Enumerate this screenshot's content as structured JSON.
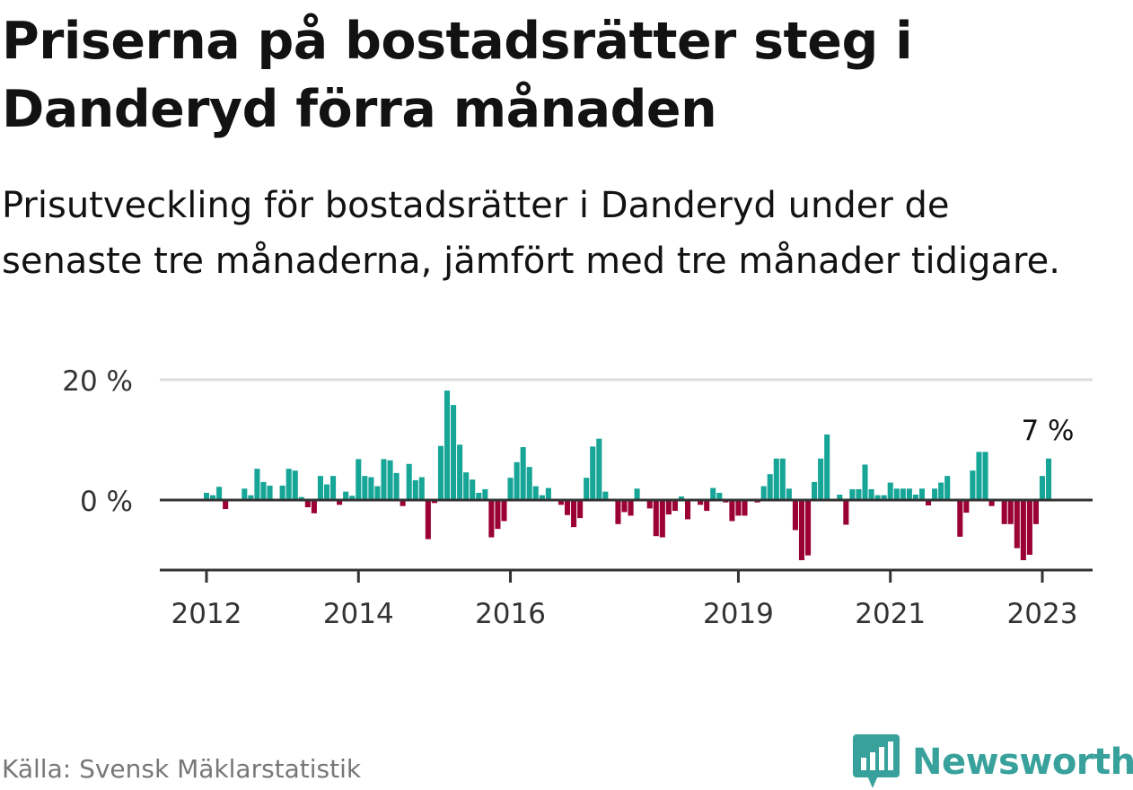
{
  "title": "Priserna på bostadsrätter steg i Danderyd förra månaden",
  "subtitle": "Prisutveckling för bostadsrätter i Danderyd under de senaste tre månaderna, jämfört med tre månader tidigare.",
  "source": "Källa: Svensk Mäklarstatistik",
  "brand": {
    "name": "Newsworthy",
    "logo_icon": "bar-chart-speech-bubble-icon",
    "color": "#38a19b"
  },
  "colors": {
    "positive": "#16a597",
    "negative": "#9b0034"
  },
  "chart_data": {
    "type": "bar",
    "ylabel": "",
    "xlabel": "",
    "ylim": [
      -11,
      20
    ],
    "yticks": [
      {
        "value": 0,
        "label": "0 %"
      },
      {
        "value": 20,
        "label": "20 %"
      }
    ],
    "xticks": [
      {
        "month": "2012-01",
        "label": "2012"
      },
      {
        "month": "2014-01",
        "label": "2014"
      },
      {
        "month": "2016-01",
        "label": "2016"
      },
      {
        "month": "2019-01",
        "label": "2019"
      },
      {
        "month": "2021-01",
        "label": "2021"
      },
      {
        "month": "2023-01",
        "label": "2023"
      }
    ],
    "annotation": {
      "month": "2023-01",
      "label": "7 %"
    },
    "start_month": "2011-01",
    "values": [
      null,
      null,
      null,
      null,
      null,
      null,
      null,
      null,
      null,
      null,
      null,
      null,
      1.2,
      0.8,
      2.2,
      -1.5,
      0,
      0,
      1.9,
      0.8,
      5.2,
      3,
      2.4,
      0,
      2.4,
      5.2,
      4.9,
      0.5,
      -1.2,
      -2.2,
      4,
      2.6,
      4,
      -0.8,
      1.4,
      0.7,
      6.8,
      4,
      3.8,
      2.3,
      6.8,
      6.6,
      4.5,
      -1,
      6,
      3.3,
      3.8,
      -6.5,
      -0.5,
      9,
      18.2,
      15.8,
      9.2,
      4.6,
      3.4,
      1.2,
      1.8,
      -6.2,
      -4.8,
      -3.5,
      3.7,
      6.3,
      8.8,
      5.5,
      2.3,
      0.8,
      2,
      0,
      -0.8,
      -2.5,
      -4.5,
      -3,
      3.7,
      8.9,
      10.2,
      1.4,
      0,
      -4,
      -2,
      -2.6,
      1.9,
      0,
      -1.4,
      -6,
      -6.2,
      -2.4,
      -1.8,
      0.6,
      -3.2,
      0,
      -0.8,
      -1.8,
      2,
      1.2,
      -0.4,
      -3.5,
      -2.6,
      -2.6,
      0,
      -0.4,
      2.3,
      4.3,
      6.9,
      6.9,
      1.9,
      -5,
      -10,
      -9.2,
      3,
      6.9,
      10.9,
      0,
      0.9,
      -4.1,
      1.8,
      1.8,
      5.9,
      1.8,
      0.8,
      0.8,
      2.9,
      1.9,
      1.9,
      1.9,
      0.9,
      1.9,
      -0.9,
      1.9,
      2.9,
      4,
      0,
      -6.1,
      -2.1,
      4.9,
      8,
      8,
      -1,
      0,
      -4,
      -4,
      -8,
      -10,
      -9.1,
      -4,
      4,
      6.9
    ]
  }
}
